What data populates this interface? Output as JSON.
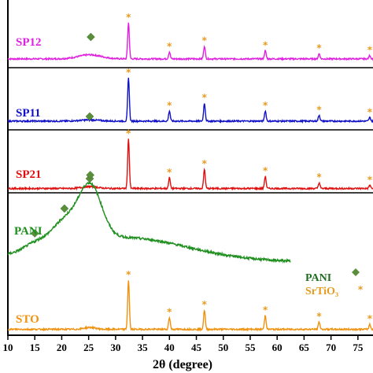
{
  "chart_data": {
    "type": "line",
    "xlabel": "2θ (degree)",
    "ylabel": "",
    "xlim": [
      10,
      80
    ],
    "xticks": [
      10,
      15,
      20,
      25,
      30,
      35,
      40,
      45,
      50,
      55,
      60,
      65,
      70,
      75
    ],
    "grid": false,
    "legend": {
      "placement": "right",
      "entries": [
        {
          "label": "PANI",
          "marker": "diamond",
          "color": "#5a8f3a"
        },
        {
          "label": "SrTiO₃",
          "marker": "asterisk",
          "color": "#e69b1e"
        }
      ]
    },
    "series": [
      {
        "name": "SP12",
        "color": "#e020e0",
        "baseline": 0.93,
        "peaks": [
          {
            "x": 32.4,
            "h": 0.62
          },
          {
            "x": 40.0,
            "h": 0.12
          },
          {
            "x": 46.5,
            "h": 0.22
          },
          {
            "x": 57.8,
            "h": 0.14
          },
          {
            "x": 67.8,
            "h": 0.09
          },
          {
            "x": 77.2,
            "h": 0.06
          }
        ],
        "hump": {
          "x": 25.2,
          "h": 0.07,
          "w": 3.0
        },
        "star_at": [
          32.4,
          40.0,
          46.5,
          57.8,
          67.8,
          77.2
        ],
        "diamond_at": [
          25.4
        ]
      },
      {
        "name": "SP11",
        "color": "#1010c8",
        "baseline": 0.92,
        "peaks": [
          {
            "x": 32.4,
            "h": 0.72
          },
          {
            "x": 40.0,
            "h": 0.17
          },
          {
            "x": 46.5,
            "h": 0.3
          },
          {
            "x": 57.8,
            "h": 0.17
          },
          {
            "x": 67.8,
            "h": 0.1
          },
          {
            "x": 77.2,
            "h": 0.06
          }
        ],
        "hump": {
          "x": 25.2,
          "h": 0.02,
          "w": 2.5
        },
        "star_at": [
          32.4,
          40.0,
          46.5,
          57.8,
          67.8,
          77.2
        ],
        "diamond_at": [
          25.2
        ]
      },
      {
        "name": "SP21",
        "color": "#e01010",
        "baseline": 0.92,
        "peaks": [
          {
            "x": 32.4,
            "h": 0.78
          },
          {
            "x": 40.0,
            "h": 0.17
          },
          {
            "x": 46.5,
            "h": 0.3
          },
          {
            "x": 57.8,
            "h": 0.19
          },
          {
            "x": 67.8,
            "h": 0.09
          },
          {
            "x": 77.2,
            "h": 0.05
          }
        ],
        "hump": {
          "x": 25.2,
          "h": 0.03,
          "w": 2.0
        },
        "star_at": [
          32.4,
          40.0,
          46.5,
          57.8,
          67.8,
          77.2
        ],
        "diamond_at": [
          25.2
        ]
      },
      {
        "name": "PANI",
        "color": "#1f8f1f",
        "baseline": 0.12,
        "xrange": [
          10,
          62.5
        ],
        "humps": [
          {
            "x": 15.0,
            "h": 0.1,
            "w": 3.0
          },
          {
            "x": 20.5,
            "h": 0.32,
            "w": 3.5
          },
          {
            "x": 25.3,
            "h": 0.7,
            "w": 3.0
          },
          {
            "x": 32.0,
            "h": 0.28,
            "w": 16.0
          }
        ],
        "diamond_at": [
          15.0,
          20.5,
          25.3
        ]
      },
      {
        "name": "STO",
        "color": "#f0920f",
        "baseline": 0.93,
        "peaks": [
          {
            "x": 32.4,
            "h": 0.79
          },
          {
            "x": 40.0,
            "h": 0.19
          },
          {
            "x": 46.5,
            "h": 0.31
          },
          {
            "x": 57.8,
            "h": 0.22
          },
          {
            "x": 67.8,
            "h": 0.12
          },
          {
            "x": 77.2,
            "h": 0.08
          }
        ],
        "hump": {
          "x": 25.2,
          "h": 0.03,
          "w": 1.5
        },
        "star_at": [
          32.4,
          40.0,
          46.5,
          57.8,
          67.8,
          77.2
        ],
        "diamond_at": []
      }
    ]
  }
}
